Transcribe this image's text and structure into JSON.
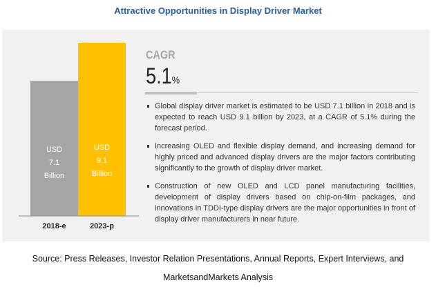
{
  "title": "Attractive Opportunities in Display Driver Market",
  "chart_data": {
    "type": "bar",
    "categories": [
      "2018-e",
      "2023-p"
    ],
    "values": [
      7.1,
      9.1
    ],
    "unit": "USD Billion",
    "data_labels": [
      [
        "USD",
        "7.1",
        "Billion"
      ],
      [
        "USD",
        "9.1",
        "Billion"
      ]
    ],
    "colors": [
      "#a6a6a6",
      "#ffc000"
    ],
    "ylim": [
      0,
      9.1
    ]
  },
  "cagr": {
    "label": "CAGR",
    "value": "5.1",
    "unit": "%"
  },
  "bullets": [
    "Global display driver market is estimated to be USD 7.1 billion in 2018 and is expected to reach USD 9.1 billion by 2023, at a CAGR of 5.1% during the forecast period.",
    "Increasing OLED and flexible display demand, and increasing demand for highly priced and advanced display drivers are the major factors contributing significantly to the growth of display driver market.",
    "Construction of new OLED and LCD panel manufacturing facilities, development of display drivers based on chip-on-film packages, and innovations in TDDI-type display drivers are the major opportunities in front of display driver manufacturers in near future."
  ],
  "source": [
    "Source: Press Releases, Investor Relation Presentations, Annual Reports, Expert Interviews, and",
    "MarketsandMarkets Analysis"
  ]
}
